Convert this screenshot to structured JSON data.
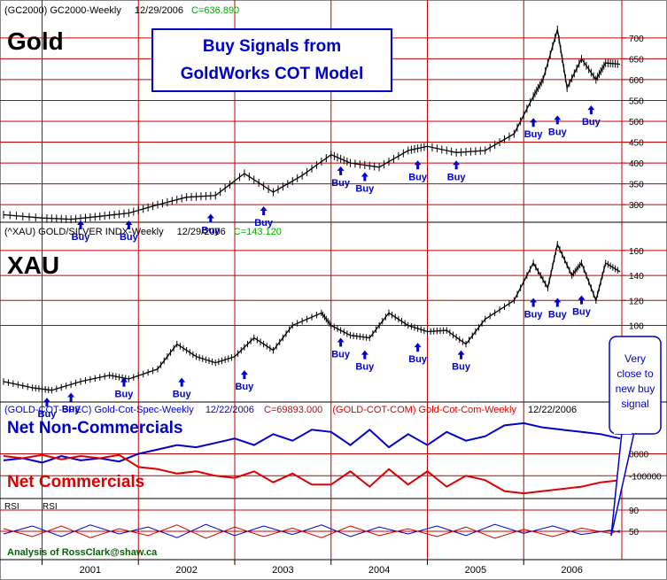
{
  "gold": {
    "header": {
      "symbol": "(GC2000)",
      "name": "GC2000-Weekly",
      "date": "12/29/2006",
      "close": "C=636.890"
    },
    "big_label": "Gold",
    "signal_box": {
      "line1": "Buy Signals from",
      "line2": "GoldWorks COT Model"
    },
    "axis_ticks": [
      "700",
      "650",
      "600",
      "550",
      "500",
      "450",
      "400",
      "350",
      "300"
    ]
  },
  "xau": {
    "header": {
      "symbol": "(^XAU)",
      "name": "GOLD/SILVER INDX-Weekly",
      "date": "12/29/2006",
      "close": "C=143.120"
    },
    "big_label": "XAU",
    "axis_ticks": [
      "160",
      "140",
      "120",
      "100"
    ]
  },
  "cot": {
    "header_spec": {
      "symbol": "(GOLD-COT-SPEC)",
      "name": "Gold-Cot-Spec-Weekly",
      "date": "12/22/2006",
      "close": "C=69893.000"
    },
    "header_com": {
      "symbol": "(GOLD-COT-COM)",
      "name": "Gold-Cot-Com-Weekly",
      "date": "12/22/2006"
    },
    "label_spec": "Net Non-Commercials",
    "label_com": "Net Commercials",
    "axis_ticks": [
      "0000",
      "-100000"
    ],
    "callout": [
      "Very",
      "close to",
      "new buy",
      "signal"
    ]
  },
  "rsi": {
    "labels": [
      "RSI",
      "RSI"
    ],
    "axis_ticks": [
      "90",
      "50"
    ],
    "credit": "Analysis of RossClark@shaw.ca"
  },
  "xaxis": {
    "years": [
      "2001",
      "2002",
      "2003",
      "2004",
      "2005",
      "2006"
    ]
  },
  "buy_label": "Buy",
  "colors": {
    "grid_red": "#c00000",
    "blue": "#0000cc",
    "red": "#dd0000",
    "green": "#00aa00",
    "dark_green": "#006600",
    "price": "#000000"
  },
  "chart_data": [
    {
      "type": "line",
      "title": "GC2000-Weekly",
      "x_unit": "year",
      "x": [
        2000.6,
        2001.0,
        2001.3,
        2001.6,
        2001.9,
        2002.2,
        2002.5,
        2002.8,
        2003.1,
        2003.4,
        2003.7,
        2004.0,
        2004.2,
        2004.5,
        2004.8,
        2005.0,
        2005.3,
        2005.6,
        2005.9,
        2006.1,
        2006.2,
        2006.35,
        2006.45,
        2006.6,
        2006.75,
        2006.85,
        2007.0
      ],
      "series": [
        {
          "values": [
            276,
            268,
            265,
            272,
            280,
            300,
            318,
            322,
            375,
            330,
            370,
            420,
            400,
            390,
            430,
            440,
            425,
            430,
            470,
            560,
            600,
            720,
            580,
            650,
            600,
            640,
            637
          ]
        }
      ],
      "ylim": [
        260,
        740
      ],
      "buy_signals_x": [
        2001.4,
        2001.9,
        2002.75,
        2003.3,
        2004.1,
        2004.35,
        2004.9,
        2005.3,
        2006.1,
        2006.35,
        2006.7
      ],
      "buy_signals_y": [
        262,
        262,
        278,
        296,
        392,
        378,
        406,
        406,
        508,
        514,
        538
      ]
    },
    {
      "type": "line",
      "title": "GOLD/SILVER INDX-Weekly",
      "x_unit": "year",
      "x": [
        2000.6,
        2000.9,
        2001.1,
        2001.4,
        2001.7,
        2001.9,
        2002.2,
        2002.4,
        2002.6,
        2002.8,
        2003.0,
        2003.2,
        2003.4,
        2003.6,
        2003.9,
        2004.0,
        2004.2,
        2004.4,
        2004.6,
        2004.8,
        2005.0,
        2005.2,
        2005.4,
        2005.6,
        2005.9,
        2006.1,
        2006.25,
        2006.35,
        2006.5,
        2006.6,
        2006.75,
        2006.85,
        2007.0
      ],
      "series": [
        {
          "values": [
            55,
            50,
            48,
            55,
            60,
            57,
            65,
            85,
            75,
            70,
            75,
            90,
            80,
            100,
            110,
            100,
            92,
            90,
            110,
            100,
            95,
            96,
            85,
            105,
            120,
            150,
            130,
            165,
            140,
            150,
            120,
            150,
            143
          ]
        }
      ],
      "ylim": [
        40,
        172
      ],
      "buy_signals_x": [
        2001.05,
        2001.3,
        2001.85,
        2002.45,
        2003.1,
        2004.1,
        2004.35,
        2004.9,
        2005.35,
        2006.1,
        2006.35,
        2006.6
      ],
      "buy_signals_y": [
        42,
        46,
        58,
        58,
        64,
        90,
        80,
        86,
        80,
        122,
        122,
        124
      ]
    },
    {
      "type": "line",
      "title": "Gold-Cot-Spec-Weekly / Gold-Cot-Com-Weekly",
      "x_unit": "year",
      "x": [
        2000.6,
        2000.8,
        2001.0,
        2001.2,
        2001.4,
        2001.6,
        2001.8,
        2002.0,
        2002.2,
        2002.4,
        2002.6,
        2002.8,
        2003.0,
        2003.2,
        2003.4,
        2003.6,
        2003.8,
        2004.0,
        2004.2,
        2004.4,
        2004.6,
        2004.8,
        2005.0,
        2005.2,
        2005.4,
        2005.6,
        2005.8,
        2006.0,
        2006.2,
        2006.4,
        2006.6,
        2006.8,
        2007.0
      ],
      "series": [
        {
          "name": "Net Non-Commercials",
          "values": [
            -30000,
            -20000,
            -40000,
            -10000,
            -30000,
            -20000,
            -35000,
            0,
            20000,
            40000,
            30000,
            50000,
            70000,
            40000,
            90000,
            60000,
            110000,
            100000,
            40000,
            110000,
            30000,
            90000,
            40000,
            100000,
            60000,
            80000,
            130000,
            140000,
            120000,
            110000,
            100000,
            90000,
            69893
          ]
        },
        {
          "name": "Net Commercials",
          "values": [
            -10000,
            -20000,
            -5000,
            -25000,
            -10000,
            -20000,
            -5000,
            -60000,
            -70000,
            -90000,
            -80000,
            -100000,
            -110000,
            -80000,
            -130000,
            -90000,
            -140000,
            -140000,
            -80000,
            -150000,
            -70000,
            -140000,
            -80000,
            -150000,
            -100000,
            -120000,
            -170000,
            -180000,
            -170000,
            -160000,
            -150000,
            -130000,
            -120000
          ]
        }
      ],
      "ylim": [
        -200000,
        180000
      ]
    },
    {
      "type": "line",
      "title": "RSI",
      "x_unit": "year",
      "x": [
        2000.6,
        2000.9,
        2001.2,
        2001.5,
        2001.8,
        2002.1,
        2002.4,
        2002.7,
        2003.0,
        2003.3,
        2003.6,
        2003.9,
        2004.2,
        2004.5,
        2004.8,
        2005.1,
        2005.4,
        2005.7,
        2006.0,
        2006.3,
        2006.6,
        2006.9,
        2007.0
      ],
      "series": [
        {
          "values": [
            45,
            60,
            40,
            62,
            45,
            58,
            38,
            63,
            42,
            60,
            44,
            62,
            40,
            58,
            45,
            60,
            42,
            63,
            46,
            60,
            44,
            52,
            48
          ]
        },
        {
          "values": [
            55,
            40,
            60,
            38,
            55,
            42,
            62,
            37,
            58,
            40,
            56,
            38,
            60,
            42,
            55,
            40,
            58,
            37,
            54,
            40,
            56,
            46,
            52
          ]
        }
      ],
      "ylim": [
        0,
        100
      ]
    }
  ]
}
